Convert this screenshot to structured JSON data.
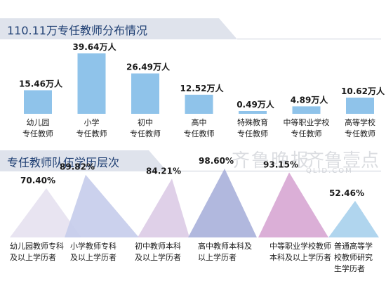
{
  "header1": {
    "title": "110.11万专任教师分布情况"
  },
  "header2": {
    "title": "专任教师队伍学历层次"
  },
  "watermark": {
    "brand_cn": "齐鲁晚报",
    "brand_app": "齐鲁壹点",
    "domain": "QLID.COM"
  },
  "chart_data": [
    {
      "type": "bar",
      "title": "110.11万专任教师分布情况",
      "unit": "万人",
      "categories": [
        "幼儿园\n专任教师",
        "小学\n专任教师",
        "初中\n专任教师",
        "高中\n专任教师",
        "特殊教育\n专任教师",
        "中等职业学校\n专任教师",
        "高等学校\n专任教师"
      ],
      "values": [
        15.46,
        39.64,
        26.49,
        12.52,
        0.49,
        4.89,
        10.62
      ],
      "value_labels": [
        "15.46万人",
        "39.64万人",
        "26.49万人",
        "12.52万人",
        "0.49万人",
        "4.89万人",
        "10.62万人"
      ],
      "color": "#8fc3ea"
    },
    {
      "type": "area",
      "title": "专任教师队伍学历层次",
      "categories": [
        "幼儿园教师专科\n及以上学历者",
        "小学教师专科\n及以上学历者",
        "初中教师本科\n及以上学历者",
        "高中教师本科及\n以上学历者",
        "中等职业学校教师\n本科及以上学历者",
        "普通高等学\n校教师研究\n生学历者"
      ],
      "values": [
        70.4,
        89.82,
        84.21,
        98.6,
        93.15,
        52.46
      ],
      "value_labels": [
        "70.40%",
        "89.82%",
        "84.21%",
        "98.60%",
        "93.15%",
        "52.46%"
      ],
      "colors": [
        "#e6e1ef",
        "#c5cceb",
        "#dccbe6",
        "#a9b0da",
        "#d7a6d3",
        "#a7d0ec"
      ]
    }
  ]
}
